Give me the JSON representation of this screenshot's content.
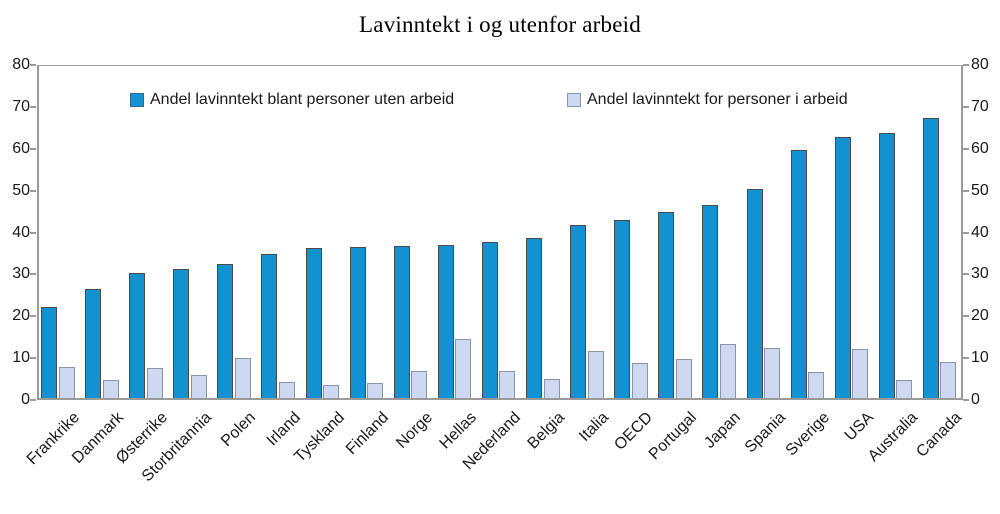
{
  "title": "Lavinntekt i og utenfor arbeid",
  "colors": {
    "series_uten_arbeid": "#1392d2",
    "series_i_arbeid": "#cdd9f1",
    "bar_border_dark": "#4a4a4a",
    "bar_border_light": "#8894a8",
    "axis_line": "#9a9a9a",
    "text": "#1a1a1a"
  },
  "legend": {
    "items": [
      {
        "label": "Andel lavinntekt blant personer uten arbeid",
        "color": "#1392d2"
      },
      {
        "label": "Andel lavinntekt for personer i arbeid",
        "color": "#cdd9f1"
      }
    ]
  },
  "chart_data": {
    "type": "bar",
    "title": "Lavinntekt i og utenfor arbeid",
    "xlabel": "",
    "ylabel": "",
    "ylim": [
      0,
      80
    ],
    "yticks": [
      0,
      10,
      20,
      30,
      40,
      50,
      60,
      70,
      80
    ],
    "grid": false,
    "legend_position": "top-inside",
    "axes_mirrored": true,
    "categories": [
      "Frankrike",
      "Danmark",
      "Østerrike",
      "Storbritannia",
      "Polen",
      "Irland",
      "Tyskland",
      "Finland",
      "Norge",
      "Hellas",
      "Nederland",
      "Belgia",
      "Italia",
      "OECD",
      "Portugal",
      "Japan",
      "Spania",
      "Sverige",
      "USA",
      "Australia",
      "Canada"
    ],
    "series": [
      {
        "name": "Andel lavinntekt blant personer uten arbeid",
        "color": "#1392d2",
        "border_color": "#4a4a4a",
        "values": [
          21.8,
          26.0,
          29.8,
          30.7,
          31.9,
          34.4,
          35.8,
          36.1,
          36.4,
          36.5,
          37.2,
          38.2,
          41.3,
          42.6,
          44.5,
          46.2,
          50.0,
          59.2,
          62.3,
          63.2,
          66.8
        ]
      },
      {
        "name": "Andel lavinntekt for personer i arbeid",
        "color": "#cdd9f1",
        "border_color": "#8894a8",
        "values": [
          7.3,
          4.2,
          7.2,
          5.4,
          9.6,
          3.8,
          3.2,
          3.5,
          6.4,
          14.2,
          6.4,
          4.6,
          11.2,
          8.4,
          9.4,
          13.0,
          11.9,
          6.3,
          11.7,
          4.3,
          8.7
        ]
      }
    ]
  }
}
